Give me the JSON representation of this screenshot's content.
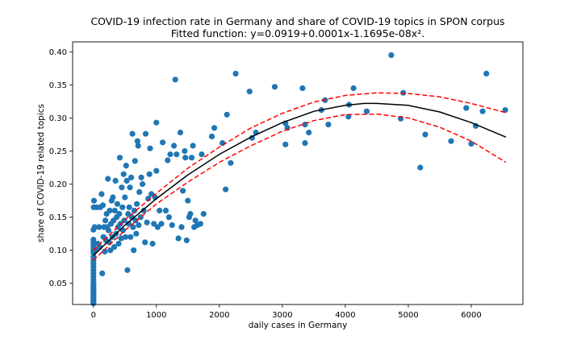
{
  "chart_data": {
    "type": "scatter",
    "title": "COVID-19 infection rate in Germany and share of COVID-19 topics in SPON corpus",
    "subtitle": "Fitted function: y=0.0919+0.0001x-1.1695e-08x².",
    "xlabel": "daily cases in Germany",
    "ylabel": "share of COVID-19 related topics",
    "xlim": [
      -330,
      6820
    ],
    "ylim": [
      0.018,
      0.415
    ],
    "xticks": [
      0,
      1000,
      2000,
      3000,
      4000,
      5000,
      6000
    ],
    "yticks": [
      0.05,
      0.1,
      0.15,
      0.2,
      0.25,
      0.3,
      0.35,
      0.4
    ],
    "yticklabels": [
      "0.05",
      "0.10",
      "0.15",
      "0.20",
      "0.25",
      "0.30",
      "0.35",
      "0.40"
    ],
    "grid": false,
    "colors": {
      "points": "#1f77b4",
      "fit": "#000000",
      "band": "#ff0000"
    },
    "fit": {
      "x": [
        0,
        500,
        1000,
        1500,
        2000,
        2500,
        3000,
        3500,
        4000,
        4300,
        4500,
        5000,
        5500,
        6000,
        6550
      ],
      "y": [
        0.092,
        0.138,
        0.178,
        0.214,
        0.245,
        0.271,
        0.293,
        0.31,
        0.319,
        0.322,
        0.322,
        0.319,
        0.309,
        0.293,
        0.271
      ]
    },
    "upper_band": {
      "x": [
        0,
        500,
        1000,
        1500,
        2000,
        2500,
        3000,
        3500,
        4000,
        4500,
        5000,
        5500,
        6000,
        6550
      ],
      "y": [
        0.1,
        0.146,
        0.186,
        0.224,
        0.256,
        0.285,
        0.307,
        0.324,
        0.334,
        0.338,
        0.337,
        0.332,
        0.322,
        0.308
      ]
    },
    "lower_band": {
      "x": [
        0,
        500,
        1000,
        1500,
        2000,
        2500,
        3000,
        3500,
        4000,
        4500,
        5000,
        5500,
        6000,
        6550
      ],
      "y": [
        0.085,
        0.13,
        0.17,
        0.203,
        0.233,
        0.258,
        0.28,
        0.296,
        0.305,
        0.306,
        0.3,
        0.286,
        0.265,
        0.233
      ]
    },
    "points": [
      [
        0,
        0.02
      ],
      [
        0,
        0.022
      ],
      [
        0,
        0.024
      ],
      [
        0,
        0.026
      ],
      [
        0,
        0.028
      ],
      [
        0,
        0.03
      ],
      [
        0,
        0.032
      ],
      [
        0,
        0.034
      ],
      [
        0,
        0.036
      ],
      [
        0,
        0.038
      ],
      [
        0,
        0.04
      ],
      [
        0,
        0.042
      ],
      [
        0,
        0.045
      ],
      [
        0,
        0.048
      ],
      [
        0,
        0.05
      ],
      [
        0,
        0.055
      ],
      [
        0,
        0.06
      ],
      [
        0,
        0.065
      ],
      [
        0,
        0.07
      ],
      [
        0,
        0.075
      ],
      [
        0,
        0.08
      ],
      [
        0,
        0.085
      ],
      [
        0,
        0.09
      ],
      [
        0,
        0.096
      ],
      [
        0,
        0.1
      ],
      [
        0,
        0.104
      ],
      [
        0,
        0.108
      ],
      [
        0,
        0.112
      ],
      [
        0,
        0.116
      ],
      [
        0,
        0.131
      ],
      [
        5,
        0.165
      ],
      [
        10,
        0.175
      ],
      [
        20,
        0.135
      ],
      [
        30,
        0.1
      ],
      [
        50,
        0.165
      ],
      [
        70,
        0.11
      ],
      [
        90,
        0.135
      ],
      [
        100,
        0.105
      ],
      [
        110,
        0.165
      ],
      [
        130,
        0.185
      ],
      [
        140,
        0.065
      ],
      [
        150,
        0.168
      ],
      [
        160,
        0.12
      ],
      [
        170,
        0.135
      ],
      [
        180,
        0.098
      ],
      [
        190,
        0.145
      ],
      [
        200,
        0.115
      ],
      [
        210,
        0.155
      ],
      [
        220,
        0.135
      ],
      [
        230,
        0.208
      ],
      [
        240,
        0.13
      ],
      [
        250,
        0.112
      ],
      [
        260,
        0.16
      ],
      [
        270,
        0.1
      ],
      [
        280,
        0.14
      ],
      [
        290,
        0.175
      ],
      [
        300,
        0.12
      ],
      [
        310,
        0.18
      ],
      [
        320,
        0.145
      ],
      [
        330,
        0.105
      ],
      [
        340,
        0.16
      ],
      [
        350,
        0.205
      ],
      [
        360,
        0.125
      ],
      [
        370,
        0.15
      ],
      [
        380,
        0.17
      ],
      [
        390,
        0.135
      ],
      [
        400,
        0.11
      ],
      [
        410,
        0.155
      ],
      [
        420,
        0.24
      ],
      [
        430,
        0.14
      ],
      [
        440,
        0.118
      ],
      [
        450,
        0.195
      ],
      [
        460,
        0.165
      ],
      [
        470,
        0.13
      ],
      [
        480,
        0.215
      ],
      [
        490,
        0.145
      ],
      [
        500,
        0.18
      ],
      [
        510,
        0.12
      ],
      [
        520,
        0.228
      ],
      [
        530,
        0.205
      ],
      [
        540,
        0.07
      ],
      [
        550,
        0.155
      ],
      [
        560,
        0.14
      ],
      [
        570,
        0.165
      ],
      [
        580,
        0.195
      ],
      [
        590,
        0.12
      ],
      [
        600,
        0.21
      ],
      [
        610,
        0.15
      ],
      [
        620,
        0.276
      ],
      [
        630,
        0.135
      ],
      [
        640,
        0.1
      ],
      [
        650,
        0.16
      ],
      [
        660,
        0.235
      ],
      [
        670,
        0.145
      ],
      [
        680,
        0.125
      ],
      [
        690,
        0.17
      ],
      [
        700,
        0.265
      ],
      [
        710,
        0.258
      ],
      [
        720,
        0.138
      ],
      [
        730,
        0.188
      ],
      [
        750,
        0.15
      ],
      [
        760,
        0.21
      ],
      [
        780,
        0.2
      ],
      [
        800,
        0.16
      ],
      [
        820,
        0.112
      ],
      [
        830,
        0.276
      ],
      [
        850,
        0.142
      ],
      [
        870,
        0.178
      ],
      [
        890,
        0.215
      ],
      [
        900,
        0.254
      ],
      [
        920,
        0.185
      ],
      [
        940,
        0.11
      ],
      [
        960,
        0.14
      ],
      [
        980,
        0.18
      ],
      [
        1000,
        0.22
      ],
      [
        1000,
        0.293
      ],
      [
        1020,
        0.135
      ],
      [
        1050,
        0.16
      ],
      [
        1080,
        0.14
      ],
      [
        1100,
        0.263
      ],
      [
        1150,
        0.16
      ],
      [
        1180,
        0.236
      ],
      [
        1200,
        0.15
      ],
      [
        1220,
        0.245
      ],
      [
        1250,
        0.138
      ],
      [
        1280,
        0.258
      ],
      [
        1300,
        0.358
      ],
      [
        1320,
        0.245
      ],
      [
        1350,
        0.118
      ],
      [
        1380,
        0.278
      ],
      [
        1400,
        0.135
      ],
      [
        1420,
        0.19
      ],
      [
        1450,
        0.25
      ],
      [
        1460,
        0.24
      ],
      [
        1480,
        0.115
      ],
      [
        1500,
        0.175
      ],
      [
        1520,
        0.15
      ],
      [
        1540,
        0.155
      ],
      [
        1560,
        0.24
      ],
      [
        1580,
        0.258
      ],
      [
        1600,
        0.135
      ],
      [
        1620,
        0.145
      ],
      [
        1650,
        0.138
      ],
      [
        1700,
        0.14
      ],
      [
        1720,
        0.245
      ],
      [
        1750,
        0.155
      ],
      [
        1880,
        0.272
      ],
      [
        1920,
        0.285
      ],
      [
        2050,
        0.262
      ],
      [
        2100,
        0.192
      ],
      [
        2120,
        0.305
      ],
      [
        2180,
        0.232
      ],
      [
        2260,
        0.367
      ],
      [
        2480,
        0.34
      ],
      [
        2520,
        0.27
      ],
      [
        2580,
        0.278
      ],
      [
        2880,
        0.347
      ],
      [
        3050,
        0.26
      ],
      [
        3050,
        0.292
      ],
      [
        3080,
        0.285
      ],
      [
        3320,
        0.345
      ],
      [
        3360,
        0.262
      ],
      [
        3360,
        0.29
      ],
      [
        3420,
        0.278
      ],
      [
        3620,
        0.312
      ],
      [
        3680,
        0.327
      ],
      [
        3730,
        0.29
      ],
      [
        4050,
        0.302
      ],
      [
        4060,
        0.32
      ],
      [
        4130,
        0.345
      ],
      [
        4340,
        0.31
      ],
      [
        4730,
        0.395
      ],
      [
        4880,
        0.299
      ],
      [
        4920,
        0.338
      ],
      [
        5190,
        0.225
      ],
      [
        5270,
        0.275
      ],
      [
        5680,
        0.265
      ],
      [
        5920,
        0.315
      ],
      [
        6000,
        0.261
      ],
      [
        6070,
        0.288
      ],
      [
        6180,
        0.31
      ],
      [
        6240,
        0.367
      ],
      [
        6540,
        0.312
      ]
    ]
  }
}
